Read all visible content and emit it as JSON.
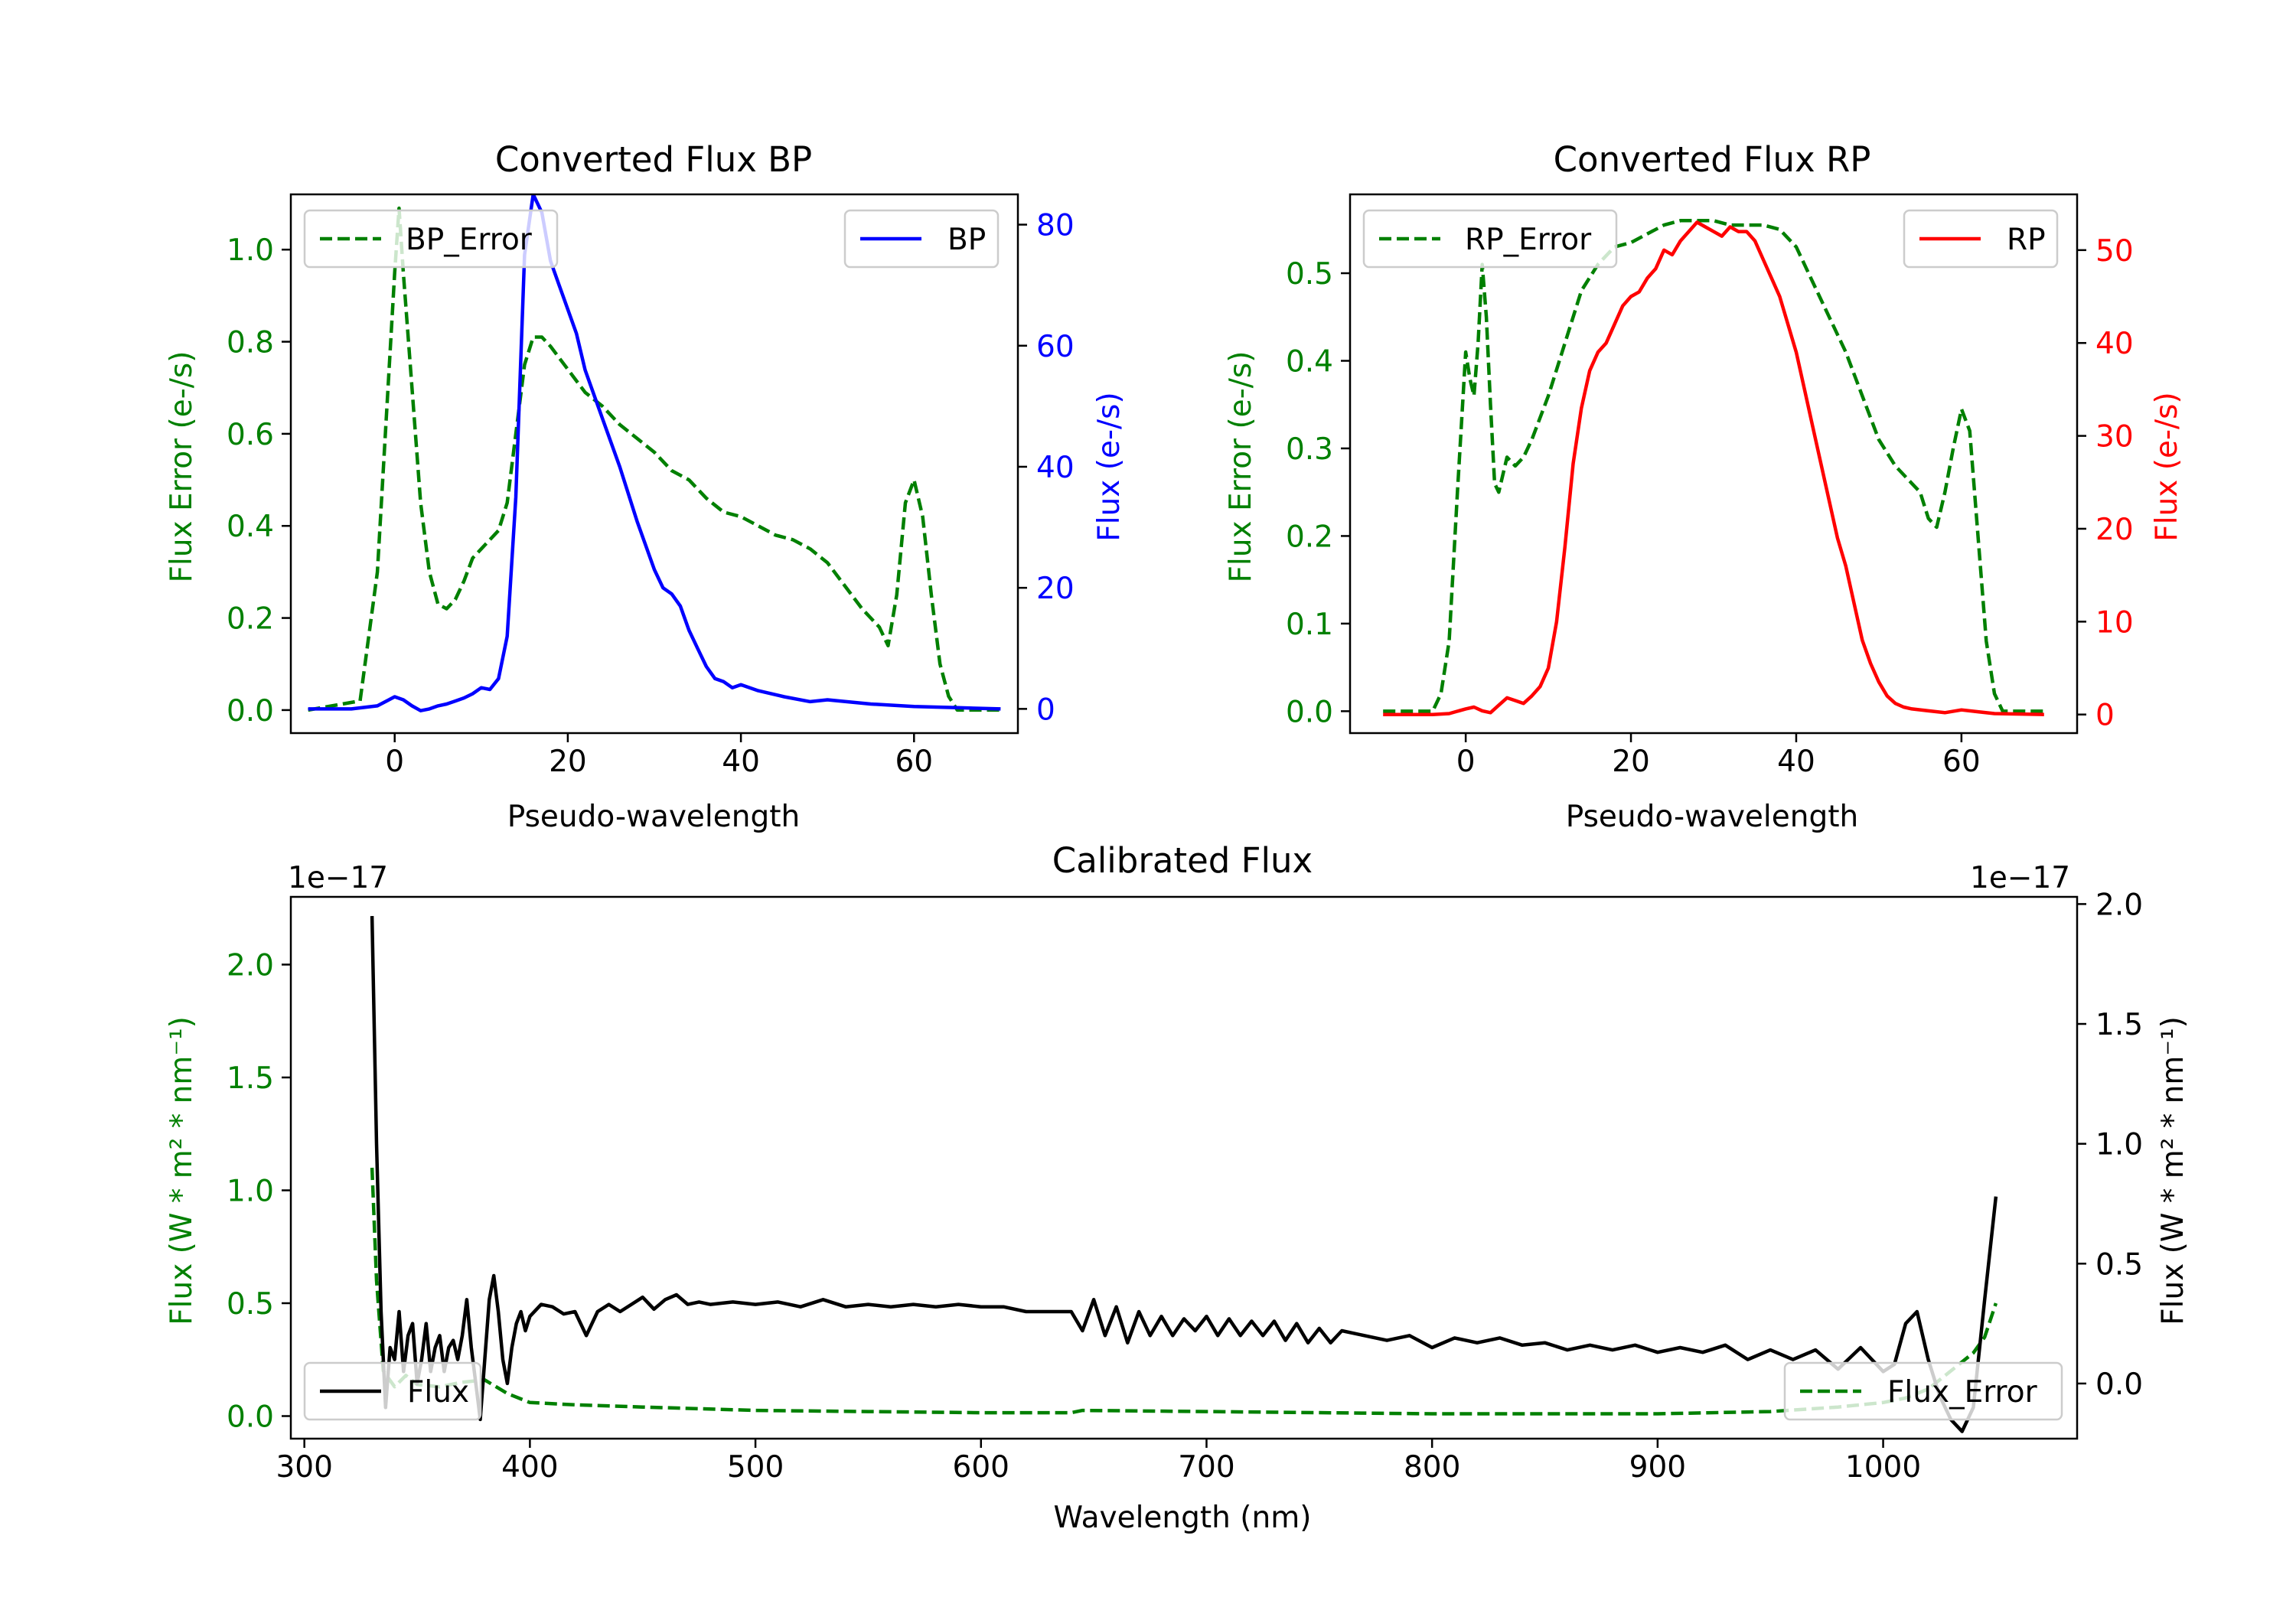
{
  "colors": {
    "error": "#008000",
    "bp": "#0000ff",
    "rp": "#ff0000",
    "flux": "#000000",
    "axis": "#000000"
  },
  "chart_data": [
    {
      "id": "bp",
      "type": "line",
      "title": "Converted Flux BP",
      "xlabel": "Pseudo-wavelength",
      "ylabel_left": "Flux Error (e-/s)",
      "ylabel_right": "Flux (e-/s)",
      "xlim": [
        -12,
        72
      ],
      "ylim_left": [
        -0.05,
        1.12
      ],
      "ylim_right": [
        -4,
        85
      ],
      "xticks": [
        0,
        20,
        40,
        60
      ],
      "yticks_left": [
        0.0,
        0.2,
        0.4,
        0.6,
        0.8,
        1.0
      ],
      "yticks_right": [
        0,
        20,
        40,
        60,
        80
      ],
      "series": [
        {
          "name": "BP_Error",
          "axis": "left",
          "style": "dashed",
          "color": "#008000",
          "legend": "upper left",
          "x": [
            -10,
            -4,
            -2,
            0,
            0.5,
            1,
            2,
            3,
            4,
            5,
            6,
            7,
            8,
            9,
            10,
            11,
            12,
            13,
            14,
            15,
            16,
            17,
            18,
            20,
            22,
            24,
            26,
            28,
            30,
            32,
            34,
            36,
            38,
            40,
            42,
            44,
            46,
            48,
            50,
            52,
            54,
            56,
            57,
            58,
            59,
            60,
            61,
            62,
            63,
            64,
            65,
            70
          ],
          "values": [
            0.0,
            0.02,
            0.3,
            0.95,
            1.09,
            0.95,
            0.7,
            0.45,
            0.3,
            0.23,
            0.22,
            0.24,
            0.28,
            0.33,
            0.35,
            0.37,
            0.39,
            0.45,
            0.6,
            0.75,
            0.81,
            0.81,
            0.79,
            0.74,
            0.69,
            0.66,
            0.62,
            0.59,
            0.56,
            0.52,
            0.5,
            0.46,
            0.43,
            0.42,
            0.4,
            0.38,
            0.37,
            0.35,
            0.32,
            0.27,
            0.22,
            0.18,
            0.14,
            0.25,
            0.45,
            0.5,
            0.42,
            0.25,
            0.1,
            0.03,
            0.0,
            0.0
          ]
        },
        {
          "name": "BP",
          "axis": "right",
          "style": "solid",
          "color": "#0000ff",
          "legend": "upper right",
          "x": [
            -10,
            -5,
            -2,
            0,
            1,
            2,
            3,
            4,
            5,
            6,
            7,
            8,
            9,
            10,
            11,
            12,
            13,
            14,
            15,
            16,
            17,
            18,
            19,
            20,
            21,
            22,
            24,
            26,
            28,
            30,
            31,
            32,
            33,
            34,
            35,
            36,
            37,
            38,
            39,
            40,
            42,
            45,
            48,
            50,
            55,
            60,
            65,
            70
          ],
          "values": [
            0,
            0,
            0.5,
            2.0,
            1.5,
            0.5,
            -0.3,
            0.0,
            0.5,
            0.8,
            1.3,
            1.8,
            2.5,
            3.5,
            3.2,
            5.0,
            12.0,
            35.0,
            75.0,
            85.0,
            82.0,
            74.0,
            70.0,
            66.0,
            62.0,
            56.0,
            48.0,
            40.0,
            31.0,
            23.0,
            20.0,
            19.0,
            17.0,
            13.0,
            10.0,
            7.0,
            5.0,
            4.5,
            3.5,
            4.0,
            3.0,
            2.0,
            1.2,
            1.5,
            0.8,
            0.4,
            0.2,
            0.0
          ]
        }
      ]
    },
    {
      "id": "rp",
      "type": "line",
      "title": "Converted Flux RP",
      "xlabel": "Pseudo-wavelength",
      "ylabel_left": "Flux Error (e-/s)",
      "ylabel_right": "Flux (e-/s)",
      "xlim": [
        -14,
        74
      ],
      "ylim_left": [
        -0.025,
        0.59
      ],
      "ylim_right": [
        -2,
        56
      ],
      "xticks": [
        0,
        20,
        40,
        60
      ],
      "yticks_left": [
        0.0,
        0.1,
        0.2,
        0.3,
        0.4,
        0.5
      ],
      "yticks_right": [
        0,
        10,
        20,
        30,
        40,
        50
      ],
      "series": [
        {
          "name": "RP_Error",
          "axis": "left",
          "style": "dashed",
          "color": "#008000",
          "legend": "upper left",
          "x": [
            -10,
            -4,
            -3,
            -2,
            -1,
            0,
            0.5,
            1,
            1.5,
            2,
            2.5,
            3,
            3.5,
            4,
            5,
            6,
            7,
            8,
            10,
            12,
            14,
            16,
            18,
            20,
            22,
            24,
            26,
            28,
            30,
            32,
            34,
            36,
            38,
            40,
            42,
            44,
            46,
            48,
            50,
            52,
            54,
            55,
            56,
            57,
            58,
            59,
            60,
            61,
            62,
            63,
            64,
            65,
            70
          ],
          "values": [
            0.0,
            0.0,
            0.02,
            0.08,
            0.25,
            0.41,
            0.38,
            0.36,
            0.42,
            0.51,
            0.45,
            0.35,
            0.26,
            0.25,
            0.29,
            0.28,
            0.29,
            0.31,
            0.36,
            0.42,
            0.48,
            0.51,
            0.53,
            0.535,
            0.545,
            0.555,
            0.56,
            0.56,
            0.56,
            0.555,
            0.555,
            0.555,
            0.55,
            0.53,
            0.49,
            0.45,
            0.41,
            0.36,
            0.31,
            0.28,
            0.26,
            0.25,
            0.22,
            0.21,
            0.25,
            0.3,
            0.345,
            0.32,
            0.2,
            0.08,
            0.02,
            0.0,
            0.0
          ]
        },
        {
          "name": "RP",
          "axis": "right",
          "style": "solid",
          "color": "#ff0000",
          "legend": "upper right",
          "x": [
            -10,
            -4,
            -2,
            0,
            1,
            2,
            3,
            4,
            5,
            6,
            7,
            8,
            9,
            10,
            11,
            12,
            13,
            14,
            15,
            16,
            17,
            18,
            19,
            20,
            21,
            22,
            23,
            24,
            25,
            26,
            27,
            28,
            29,
            30,
            31,
            32,
            33,
            34,
            35,
            36,
            37,
            38,
            39,
            40,
            41,
            42,
            43,
            44,
            45,
            46,
            47,
            48,
            49,
            50,
            51,
            52,
            53,
            54,
            56,
            58,
            60,
            62,
            64,
            70
          ],
          "values": [
            0,
            0,
            0.1,
            0.6,
            0.8,
            0.4,
            0.2,
            1.0,
            1.8,
            1.5,
            1.2,
            2.0,
            3.0,
            5.0,
            10.0,
            18.0,
            27.0,
            33.0,
            37.0,
            39.0,
            40.0,
            42.0,
            44.0,
            45.0,
            45.5,
            47.0,
            48.0,
            50.0,
            49.5,
            51.0,
            52.0,
            53.0,
            52.5,
            52.0,
            51.5,
            52.5,
            52.0,
            52.0,
            51.0,
            49.0,
            47.0,
            45.0,
            42.0,
            39.0,
            35.0,
            31.0,
            27.0,
            23.0,
            19.0,
            16.0,
            12.0,
            8.0,
            5.5,
            3.5,
            2.0,
            1.2,
            0.8,
            0.6,
            0.4,
            0.2,
            0.5,
            0.3,
            0.1,
            0.0
          ]
        }
      ]
    },
    {
      "id": "cal",
      "type": "line",
      "title": "Calibrated Flux",
      "xlabel": "Wavelength (nm)",
      "ylabel_left": "Flux (W * m² * nm⁻¹)",
      "ylabel_right": "Flux (W * m² * nm⁻¹)",
      "offset_left": "1e−17",
      "offset_right": "1e−17",
      "xlim": [
        294,
        1086
      ],
      "ylim_left": [
        -0.1,
        2.3
      ],
      "ylim_right": [
        -0.23,
        2.03
      ],
      "xticks": [
        300,
        400,
        500,
        600,
        700,
        800,
        900,
        1000
      ],
      "yticks_left": [
        0.0,
        0.5,
        1.0,
        1.5,
        2.0
      ],
      "yticks_right": [
        0.0,
        0.5,
        1.0,
        1.5,
        2.0
      ],
      "series": [
        {
          "name": "Flux_Error",
          "axis": "left",
          "style": "dashed",
          "color": "#008000",
          "legend": "lower right",
          "x": [
            330,
            332,
            335,
            340,
            345,
            350,
            360,
            370,
            380,
            390,
            400,
            420,
            450,
            500,
            550,
            600,
            640,
            645,
            700,
            800,
            900,
            950,
            980,
            1000,
            1010,
            1020,
            1030,
            1040,
            1045,
            1050
          ],
          "values": [
            1.1,
            0.6,
            0.2,
            0.13,
            0.18,
            0.14,
            0.13,
            0.15,
            0.16,
            0.1,
            0.06,
            0.05,
            0.04,
            0.025,
            0.02,
            0.015,
            0.015,
            0.025,
            0.02,
            0.01,
            0.01,
            0.02,
            0.04,
            0.06,
            0.08,
            0.12,
            0.2,
            0.28,
            0.35,
            0.5
          ]
        },
        {
          "name": "Flux",
          "axis": "right",
          "style": "solid",
          "color": "#000000",
          "legend": "lower left",
          "x": [
            330,
            332,
            334,
            336,
            338,
            340,
            342,
            344,
            346,
            348,
            350,
            352,
            354,
            356,
            358,
            360,
            362,
            364,
            366,
            368,
            370,
            372,
            374,
            376,
            378,
            380,
            382,
            384,
            386,
            388,
            390,
            392,
            394,
            396,
            398,
            400,
            405,
            410,
            415,
            420,
            425,
            430,
            435,
            440,
            445,
            450,
            455,
            460,
            465,
            470,
            475,
            480,
            490,
            500,
            510,
            520,
            530,
            540,
            550,
            560,
            570,
            580,
            590,
            600,
            610,
            620,
            630,
            640,
            645,
            650,
            655,
            660,
            665,
            670,
            675,
            680,
            685,
            690,
            695,
            700,
            705,
            710,
            715,
            720,
            725,
            730,
            735,
            740,
            745,
            750,
            755,
            760,
            770,
            780,
            790,
            800,
            810,
            820,
            830,
            840,
            850,
            860,
            870,
            880,
            890,
            900,
            910,
            920,
            930,
            940,
            950,
            960,
            970,
            980,
            990,
            1000,
            1005,
            1010,
            1015,
            1020,
            1025,
            1030,
            1035,
            1040,
            1045,
            1050
          ],
          "values": [
            1.95,
            1.0,
            0.3,
            -0.1,
            0.15,
            0.1,
            0.3,
            0.05,
            0.2,
            0.25,
            0.0,
            0.1,
            0.25,
            0.05,
            0.15,
            0.2,
            0.05,
            0.15,
            0.18,
            0.1,
            0.2,
            0.35,
            0.15,
            0.0,
            -0.15,
            0.1,
            0.35,
            0.45,
            0.3,
            0.1,
            0.0,
            0.15,
            0.25,
            0.3,
            0.22,
            0.28,
            0.33,
            0.32,
            0.29,
            0.3,
            0.2,
            0.3,
            0.33,
            0.3,
            0.33,
            0.36,
            0.31,
            0.35,
            0.37,
            0.33,
            0.34,
            0.33,
            0.34,
            0.33,
            0.34,
            0.32,
            0.35,
            0.32,
            0.33,
            0.32,
            0.33,
            0.32,
            0.33,
            0.32,
            0.32,
            0.3,
            0.3,
            0.3,
            0.22,
            0.35,
            0.2,
            0.32,
            0.17,
            0.3,
            0.2,
            0.28,
            0.2,
            0.27,
            0.22,
            0.28,
            0.2,
            0.27,
            0.2,
            0.26,
            0.2,
            0.26,
            0.18,
            0.25,
            0.17,
            0.23,
            0.17,
            0.22,
            0.2,
            0.18,
            0.2,
            0.15,
            0.19,
            0.17,
            0.19,
            0.16,
            0.17,
            0.14,
            0.16,
            0.14,
            0.16,
            0.13,
            0.15,
            0.13,
            0.16,
            0.1,
            0.14,
            0.1,
            0.14,
            0.06,
            0.15,
            0.05,
            0.08,
            0.25,
            0.3,
            0.1,
            -0.05,
            -0.15,
            -0.2,
            -0.1,
            0.35,
            0.78
          ]
        }
      ]
    }
  ]
}
